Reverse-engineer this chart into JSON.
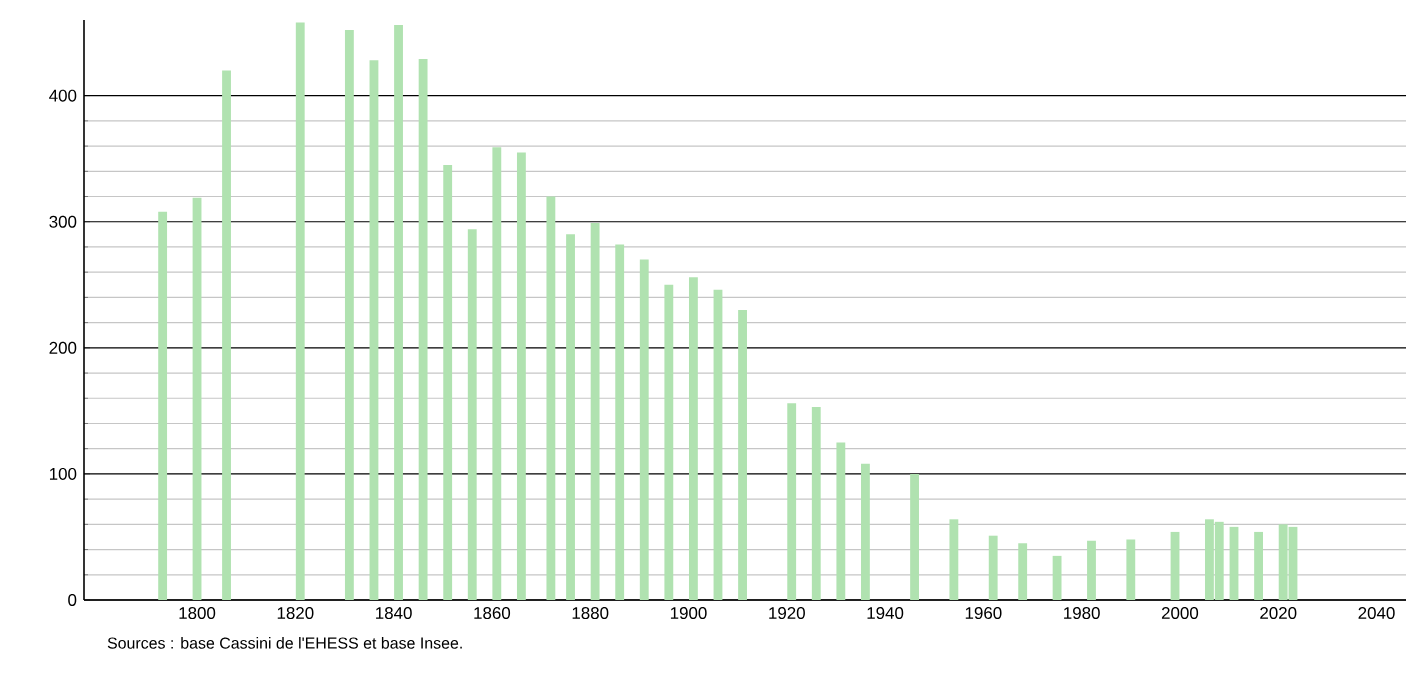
{
  "chart_data": {
    "type": "bar",
    "color": "#b0e2b0",
    "x": [
      "1793",
      "1800",
      "1806",
      "1821",
      "1831",
      "1836",
      "1841",
      "1846",
      "1851",
      "1856",
      "1861",
      "1866",
      "1872",
      "1876",
      "1881",
      "1886",
      "1891",
      "1896",
      "1901",
      "1906",
      "1911",
      "1921",
      "1926",
      "1931",
      "1936",
      "1946",
      "1954",
      "1962",
      "1968",
      "1975",
      "1982",
      "1990",
      "1999",
      "2006",
      "2008",
      "2011",
      "2016",
      "2021",
      "2023"
    ],
    "values": [
      308,
      319,
      420,
      458,
      452,
      428,
      456,
      429,
      345,
      294,
      359,
      355,
      320,
      290,
      299,
      282,
      270,
      250,
      256,
      246,
      230,
      156,
      153,
      125,
      108,
      100,
      64,
      51,
      45,
      35,
      47,
      48,
      54,
      64,
      62,
      58,
      54,
      60,
      58
    ],
    "xlim": [
      "1777",
      "2046"
    ],
    "xticks": [
      "1800",
      "1820",
      "1840",
      "1860",
      "1880",
      "1900",
      "1920",
      "1940",
      "1960",
      "1980",
      "2000",
      "2020",
      "2040"
    ],
    "ylim": [
      0,
      460
    ],
    "yticks": [
      0,
      100,
      200,
      300,
      400
    ],
    "grid": "y",
    "annotations": [
      "Sources : base Cassini de l'EHESS et base Insee."
    ]
  }
}
